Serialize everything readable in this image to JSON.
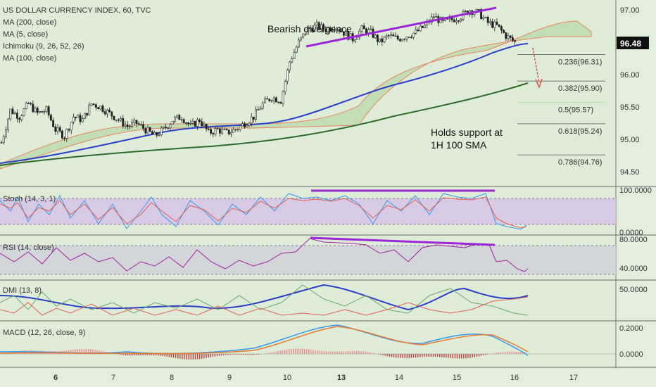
{
  "chart_data": {
    "type": "candlestick",
    "title": "US DOLLAR CURRENCY INDEX, 60, TVC",
    "last_price": "96.48",
    "indicator_legend": [
      "MA (200, close)",
      "MA (5, close)",
      "Ichimoku (9, 26, 52, 26)",
      "MA (100, close)"
    ],
    "x_ticks": [
      "6",
      "7",
      "8",
      "9",
      "10",
      "13",
      "14",
      "15",
      "16",
      "17"
    ],
    "price_ticks": [
      "97.00",
      "96.50",
      "96.00",
      "95.50",
      "95.00",
      "94.50"
    ],
    "price_ylim": [
      94.3,
      97.1
    ],
    "price_trend": [
      [
        0,
        94.95
      ],
      [
        4,
        95.45
      ],
      [
        8,
        95.35
      ],
      [
        12,
        95.55
      ],
      [
        16,
        95.4
      ],
      [
        20,
        95.45
      ],
      [
        24,
        95.15
      ],
      [
        28,
        95.05
      ],
      [
        32,
        95.35
      ],
      [
        36,
        95.3
      ],
      [
        40,
        95.55
      ],
      [
        44,
        95.5
      ],
      [
        48,
        95.4
      ],
      [
        52,
        95.3
      ],
      [
        56,
        95.2
      ],
      [
        60,
        95.25
      ],
      [
        64,
        95.15
      ],
      [
        68,
        95.05
      ],
      [
        72,
        95.15
      ],
      [
        76,
        95.3
      ],
      [
        80,
        95.35
      ],
      [
        84,
        95.2
      ],
      [
        88,
        95.3
      ],
      [
        92,
        95.1
      ],
      [
        96,
        95.15
      ],
      [
        100,
        95.1
      ],
      [
        104,
        95.15
      ],
      [
        108,
        95.25
      ],
      [
        112,
        95.35
      ],
      [
        116,
        95.55
      ],
      [
        120,
        95.65
      ],
      [
        124,
        95.6
      ],
      [
        128,
        96.2
      ],
      [
        132,
        96.5
      ],
      [
        136,
        96.7
      ],
      [
        140,
        96.75
      ],
      [
        144,
        96.7
      ],
      [
        148,
        96.75
      ],
      [
        152,
        96.65
      ],
      [
        156,
        96.55
      ],
      [
        160,
        96.7
      ],
      [
        164,
        96.65
      ],
      [
        168,
        96.5
      ],
      [
        172,
        96.6
      ],
      [
        176,
        96.55
      ],
      [
        180,
        96.6
      ],
      [
        184,
        96.65
      ],
      [
        188,
        96.75
      ],
      [
        192,
        96.9
      ],
      [
        196,
        96.8
      ],
      [
        200,
        96.85
      ],
      [
        204,
        96.9
      ],
      [
        208,
        97.0
      ],
      [
        212,
        96.95
      ],
      [
        216,
        96.8
      ],
      [
        220,
        96.75
      ],
      [
        224,
        96.6
      ],
      [
        228,
        96.5
      ]
    ],
    "fib_levels": [
      {
        "label": "0.236(96.31)",
        "value": 96.31
      },
      {
        "label": "0.382(95.90)",
        "value": 95.9
      },
      {
        "label": "0.5(95.57)",
        "value": 95.57
      },
      {
        "label": "0.618(95.24)",
        "value": 95.24
      },
      {
        "label": "0.786(94.76)",
        "value": 94.76
      }
    ],
    "annotations": {
      "bearish_divergence": "Bearish divergence",
      "holds_support_1": "Holds support at",
      "holds_support_2": "1H 100 SMA"
    },
    "stoch": {
      "label": "Stoch (14, 3, 1)",
      "ticks": [
        "100.0000",
        "0.0000"
      ]
    },
    "rsi": {
      "label": "RSI (14, close)",
      "ticks": [
        "80.0000",
        "40.0000"
      ]
    },
    "dmi": {
      "label": "DMI (13, 8)",
      "ticks": [
        "50.0000"
      ]
    },
    "macd": {
      "label": "MACD (12, 26, close, 9)",
      "ticks": [
        "0.2000",
        "0.0000"
      ]
    }
  }
}
